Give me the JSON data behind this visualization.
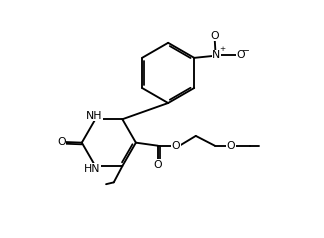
{
  "bg": "#ffffff",
  "lc": "#000000",
  "lw": 1.35,
  "fs": 7.8,
  "figsize": [
    3.24,
    2.38
  ],
  "dpi": 100,
  "xlim": [
    0.0,
    10.5
  ],
  "ylim": [
    0.3,
    7.8
  ]
}
